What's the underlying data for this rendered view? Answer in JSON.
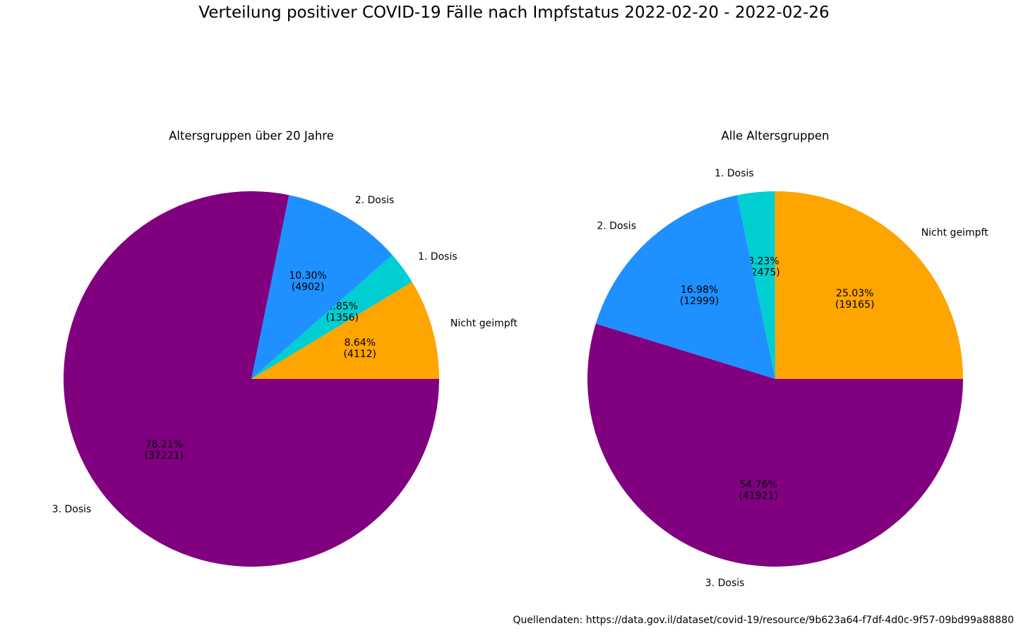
{
  "figure": {
    "title": "Verteilung positiver COVID-19 Fälle nach Impfstatus 2022-02-20 - 2022-02-26",
    "source": "Quellendaten: https://data.gov.il/dataset/covid-19/resource/9b623a64-f7df-4d0c-9f57-09bd99a88880"
  },
  "chart_data": [
    {
      "type": "pie",
      "title": "Altersgruppen über 20 Jahre",
      "start_angle_deg": 0,
      "direction": "counterclockwise",
      "slices": [
        {
          "label": "Nicht geimpft",
          "value": 4112,
          "percent": "8.64%",
          "count": "(4112)",
          "color": "#FFA500"
        },
        {
          "label": "1. Dosis",
          "value": 1356,
          "percent": "2.85%",
          "count": "(1356)",
          "color": "#00CED1"
        },
        {
          "label": "2. Dosis",
          "value": 4902,
          "percent": "10.30%",
          "count": "(4902)",
          "color": "#1E90FF"
        },
        {
          "label": "3. Dosis",
          "value": 37221,
          "percent": "78.21%",
          "count": "(37221)",
          "color": "#800080"
        }
      ]
    },
    {
      "type": "pie",
      "title": "Alle Altersgruppen",
      "start_angle_deg": 0,
      "direction": "counterclockwise",
      "slices": [
        {
          "label": "Nicht geimpft",
          "value": 19165,
          "percent": "25.03%",
          "count": "(19165)",
          "color": "#FFA500"
        },
        {
          "label": "1. Dosis",
          "value": 2475,
          "percent": "3.23%",
          "count": "(2475)",
          "color": "#00CED1"
        },
        {
          "label": "2. Dosis",
          "value": 12999,
          "percent": "16.98%",
          "count": "(12999)",
          "color": "#1E90FF"
        },
        {
          "label": "3. Dosis",
          "value": 41921,
          "percent": "54.76%",
          "count": "(41921)",
          "color": "#800080"
        }
      ]
    }
  ]
}
